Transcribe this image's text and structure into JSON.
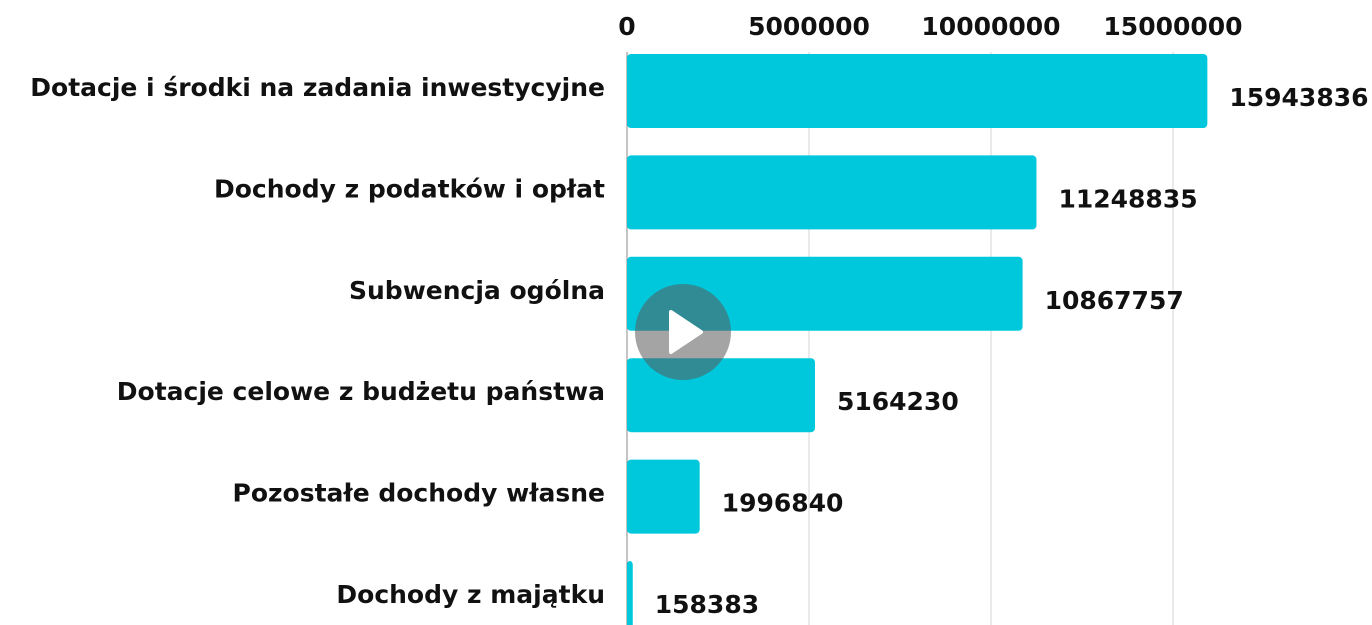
{
  "chart_data": {
    "type": "bar",
    "orientation": "horizontal",
    "categories": [
      "Dotacje i środki na zadania inwestycyjne",
      "Dochody z podatków i opłat",
      "Subwencja ogólna",
      "Dotacje celowe z budżetu państwa",
      "Pozostałe dochody własne",
      "Dochody z majątku"
    ],
    "values": [
      15943836,
      11248835,
      10867757,
      5164230,
      1996840,
      158383
    ],
    "color": "#00c8dc",
    "xlim": [
      0,
      20000000
    ],
    "xticks": [
      0,
      5000000,
      10000000,
      15000000
    ],
    "grid": true
  }
}
